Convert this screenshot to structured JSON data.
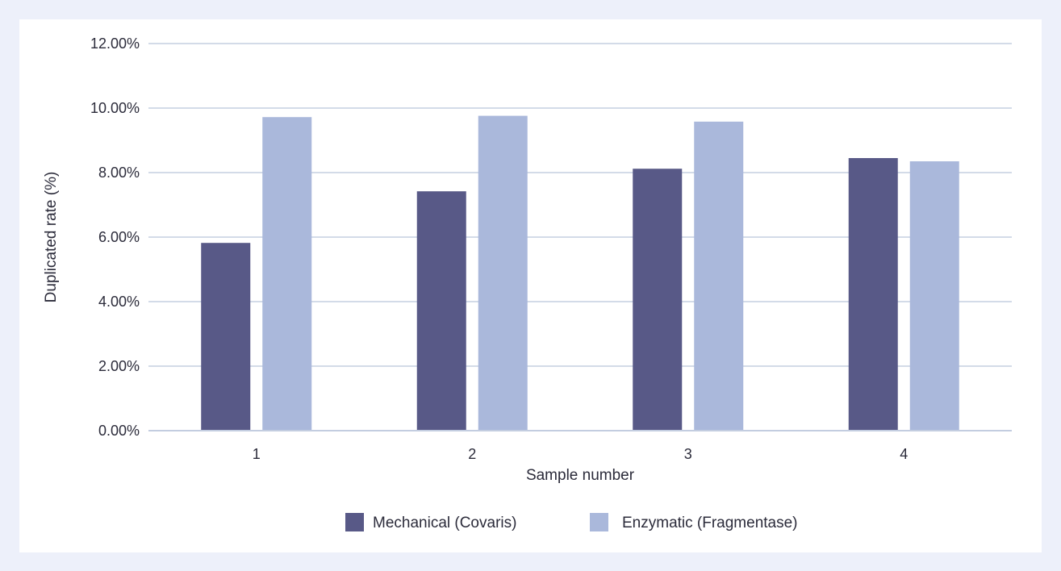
{
  "chart_data": {
    "type": "bar",
    "categories": [
      "1",
      "2",
      "3",
      "4"
    ],
    "series": [
      {
        "name": "Mechanical (Covaris)",
        "values": [
          5.82,
          7.42,
          8.12,
          8.45
        ],
        "color": "#585987"
      },
      {
        "name": "Enzymatic (Fragmentase)",
        "values": [
          9.72,
          9.76,
          9.58,
          8.35
        ],
        "color": "#aab8db"
      }
    ],
    "xlabel": "Sample number",
    "ylabel": "Duplicated rate (%)",
    "ylim": [
      0,
      12
    ],
    "yticks": [
      {
        "value": 0,
        "label": "0.00%"
      },
      {
        "value": 2,
        "label": "2.00%"
      },
      {
        "value": 4,
        "label": "4.00%"
      },
      {
        "value": 6,
        "label": "6.00%"
      },
      {
        "value": 8,
        "label": "8.00%"
      },
      {
        "value": 10,
        "label": "10.00%"
      },
      {
        "value": 12,
        "label": "12.00%"
      }
    ],
    "grid": true,
    "gridline_color": "#d3dbe8",
    "legend_position": "bottom"
  }
}
